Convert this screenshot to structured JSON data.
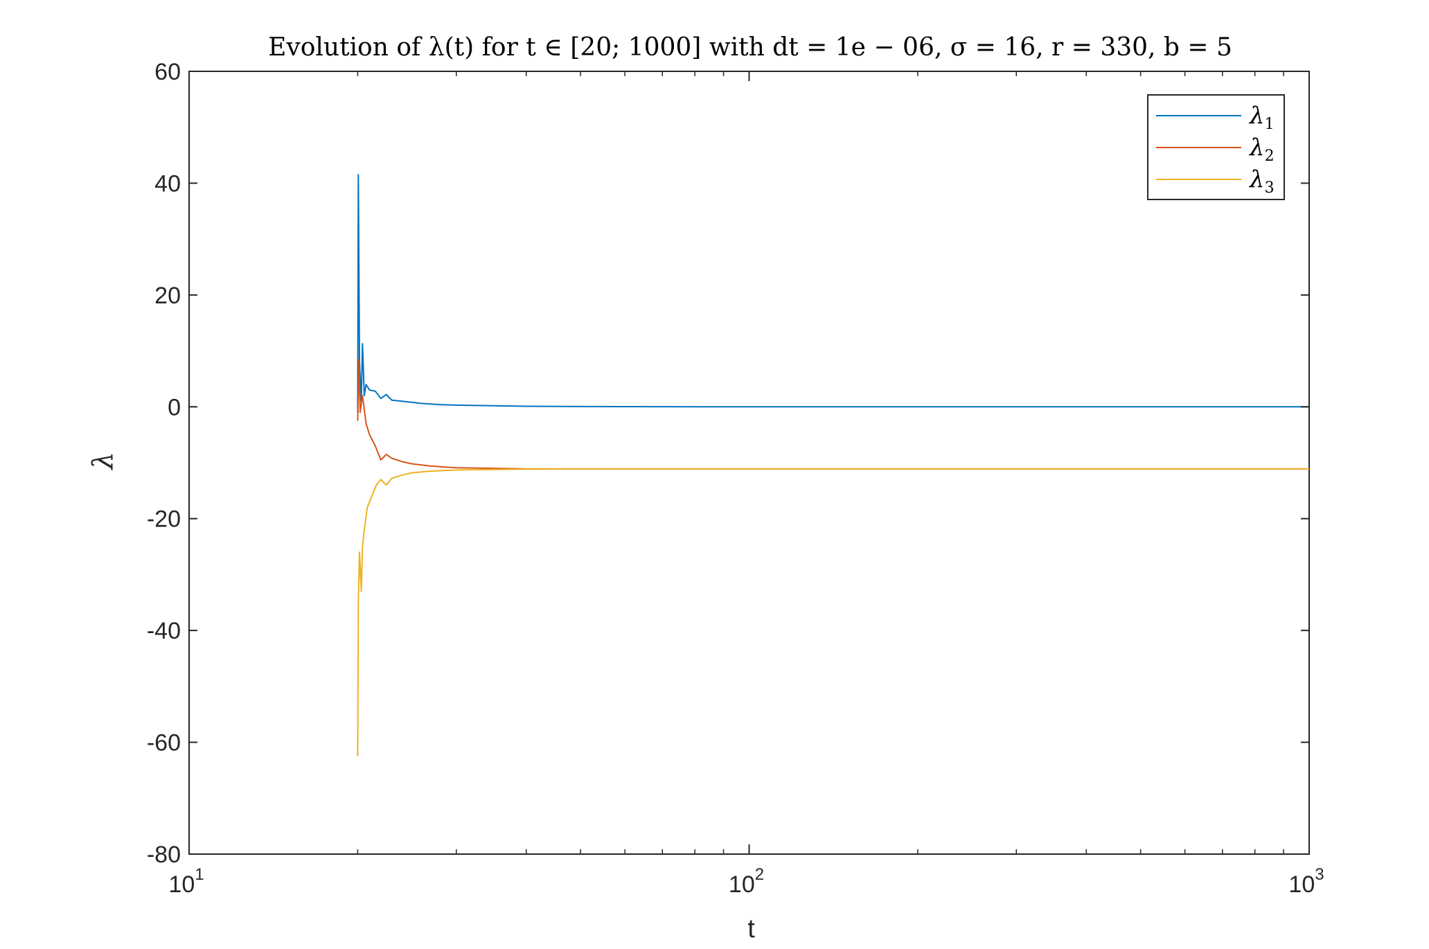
{
  "chart_data": {
    "type": "line",
    "title": "Evolution of λ(t) for t ∈ [20; 1000] with dt = 1e − 06, σ = 16, r = 330, b = 5",
    "xlabel": "t",
    "ylabel": "λ",
    "xscale": "log",
    "xlim": [
      10,
      1000
    ],
    "ylim": [
      -80,
      60
    ],
    "xticks": [
      {
        "value": 10,
        "base": "10",
        "exp": "1"
      },
      {
        "value": 100,
        "base": "10",
        "exp": "2"
      },
      {
        "value": 1000,
        "base": "10",
        "exp": "3"
      }
    ],
    "yticks": [
      60,
      40,
      20,
      0,
      -20,
      -40,
      -60,
      -80
    ],
    "grid": false,
    "legend_position": "top-right",
    "series": [
      {
        "name": "λ1",
        "label_base": "λ",
        "label_sub": "1",
        "color": "#0072BD",
        "x": [
          20,
          20.05,
          20.15,
          20.3,
          20.4,
          20.55,
          20.7,
          21.0,
          21.5,
          22.0,
          22.5,
          23,
          24,
          25,
          26,
          28,
          30,
          35,
          40,
          50,
          70,
          100,
          200,
          500,
          1000
        ],
        "y": [
          -1,
          41.5,
          8,
          1,
          11.3,
          2,
          4,
          3,
          2.8,
          1.5,
          2.2,
          1.2,
          1.0,
          0.8,
          0.6,
          0.4,
          0.3,
          0.2,
          0.1,
          0.05,
          0.02,
          0,
          0,
          0,
          0
        ]
      },
      {
        "name": "λ2",
        "label_base": "λ",
        "label_sub": "2",
        "color": "#D95319",
        "x": [
          20,
          20.1,
          20.2,
          20.4,
          20.7,
          21,
          21.5,
          22,
          22.5,
          23,
          24,
          25,
          27,
          30,
          35,
          40,
          50,
          70,
          100,
          200,
          500,
          1000
        ],
        "y": [
          -2.5,
          8.5,
          -1,
          2,
          -3,
          -5,
          -7,
          -9.5,
          -8.5,
          -9.2,
          -9.8,
          -10.2,
          -10.6,
          -10.9,
          -11.0,
          -11.1,
          -11.1,
          -11.1,
          -11.1,
          -11.1,
          -11.1,
          -11.1
        ]
      },
      {
        "name": "λ3",
        "label_base": "λ",
        "label_sub": "3",
        "color": "#EDB120",
        "x": [
          20,
          20.05,
          20.15,
          20.3,
          20.4,
          20.55,
          20.8,
          21.2,
          21.6,
          22,
          22.5,
          23,
          24,
          25,
          27,
          30,
          35,
          40,
          50,
          70,
          100,
          200,
          500,
          1000
        ],
        "y": [
          -62.5,
          -35,
          -26,
          -33,
          -25,
          -22,
          -18,
          -16,
          -14,
          -13,
          -14,
          -12.8,
          -12.2,
          -11.8,
          -11.5,
          -11.3,
          -11.2,
          -11.15,
          -11.1,
          -11.1,
          -11.1,
          -11.1,
          -11.1,
          -11.1
        ]
      }
    ]
  }
}
